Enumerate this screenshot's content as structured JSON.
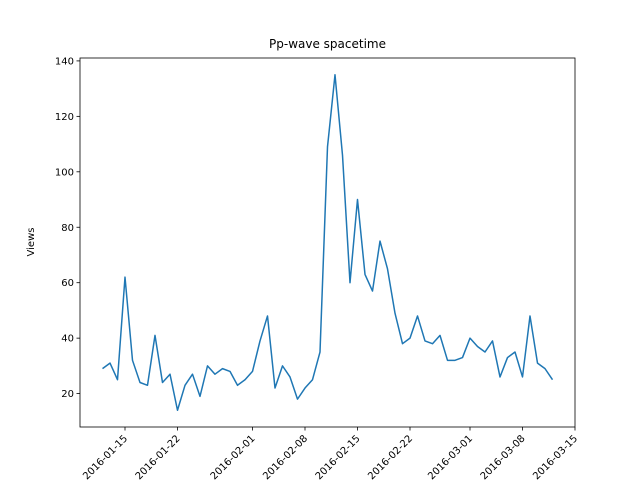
{
  "chart_data": {
    "type": "line",
    "title": "Pp-wave spacetime",
    "y_label": "Views",
    "x": [
      "2016-01-12",
      "2016-01-13",
      "2016-01-14",
      "2016-01-15",
      "2016-01-16",
      "2016-01-17",
      "2016-01-18",
      "2016-01-19",
      "2016-01-20",
      "2016-01-21",
      "2016-01-22",
      "2016-01-23",
      "2016-01-24",
      "2016-01-25",
      "2016-01-26",
      "2016-01-27",
      "2016-01-28",
      "2016-01-29",
      "2016-01-30",
      "2016-01-31",
      "2016-02-01",
      "2016-02-02",
      "2016-02-03",
      "2016-02-04",
      "2016-02-05",
      "2016-02-06",
      "2016-02-07",
      "2016-02-08",
      "2016-02-09",
      "2016-02-10",
      "2016-02-11",
      "2016-02-12",
      "2016-02-13",
      "2016-02-14",
      "2016-02-15",
      "2016-02-16",
      "2016-02-17",
      "2016-02-18",
      "2016-02-19",
      "2016-02-20",
      "2016-02-21",
      "2016-02-22",
      "2016-02-23",
      "2016-02-24",
      "2016-02-25",
      "2016-02-26",
      "2016-02-27",
      "2016-02-28",
      "2016-02-29",
      "2016-03-01",
      "2016-03-02",
      "2016-03-03",
      "2016-03-04",
      "2016-03-05",
      "2016-03-06",
      "2016-03-07",
      "2016-03-08",
      "2016-03-09",
      "2016-03-10",
      "2016-03-11",
      "2016-03-12"
    ],
    "series": [
      {
        "color": "#1f77b4",
        "values": [
          29,
          31,
          25,
          62,
          32,
          24,
          23,
          41,
          24,
          27,
          14,
          23,
          27,
          19,
          30,
          27,
          29,
          28,
          23,
          25,
          28,
          39,
          48,
          22,
          30,
          26,
          18,
          22,
          25,
          35,
          109,
          135,
          106,
          60,
          90,
          63,
          57,
          75,
          65,
          49,
          38,
          40,
          48,
          39,
          38,
          41,
          32,
          32,
          33,
          40,
          37,
          35,
          39,
          26,
          33,
          35,
          26,
          48,
          31,
          29,
          25
        ]
      }
    ],
    "xlim": [
      "2016-01-09",
      "2016-03-15"
    ],
    "xticks": [
      "2016-01-15",
      "2016-01-22",
      "2016-02-01",
      "2016-02-08",
      "2016-02-15",
      "2016-02-22",
      "2016-03-01",
      "2016-03-08",
      "2016-03-15"
    ],
    "ylim": [
      7.95,
      141.05
    ],
    "yticks": [
      20,
      40,
      60,
      80,
      100,
      120,
      140
    ]
  }
}
